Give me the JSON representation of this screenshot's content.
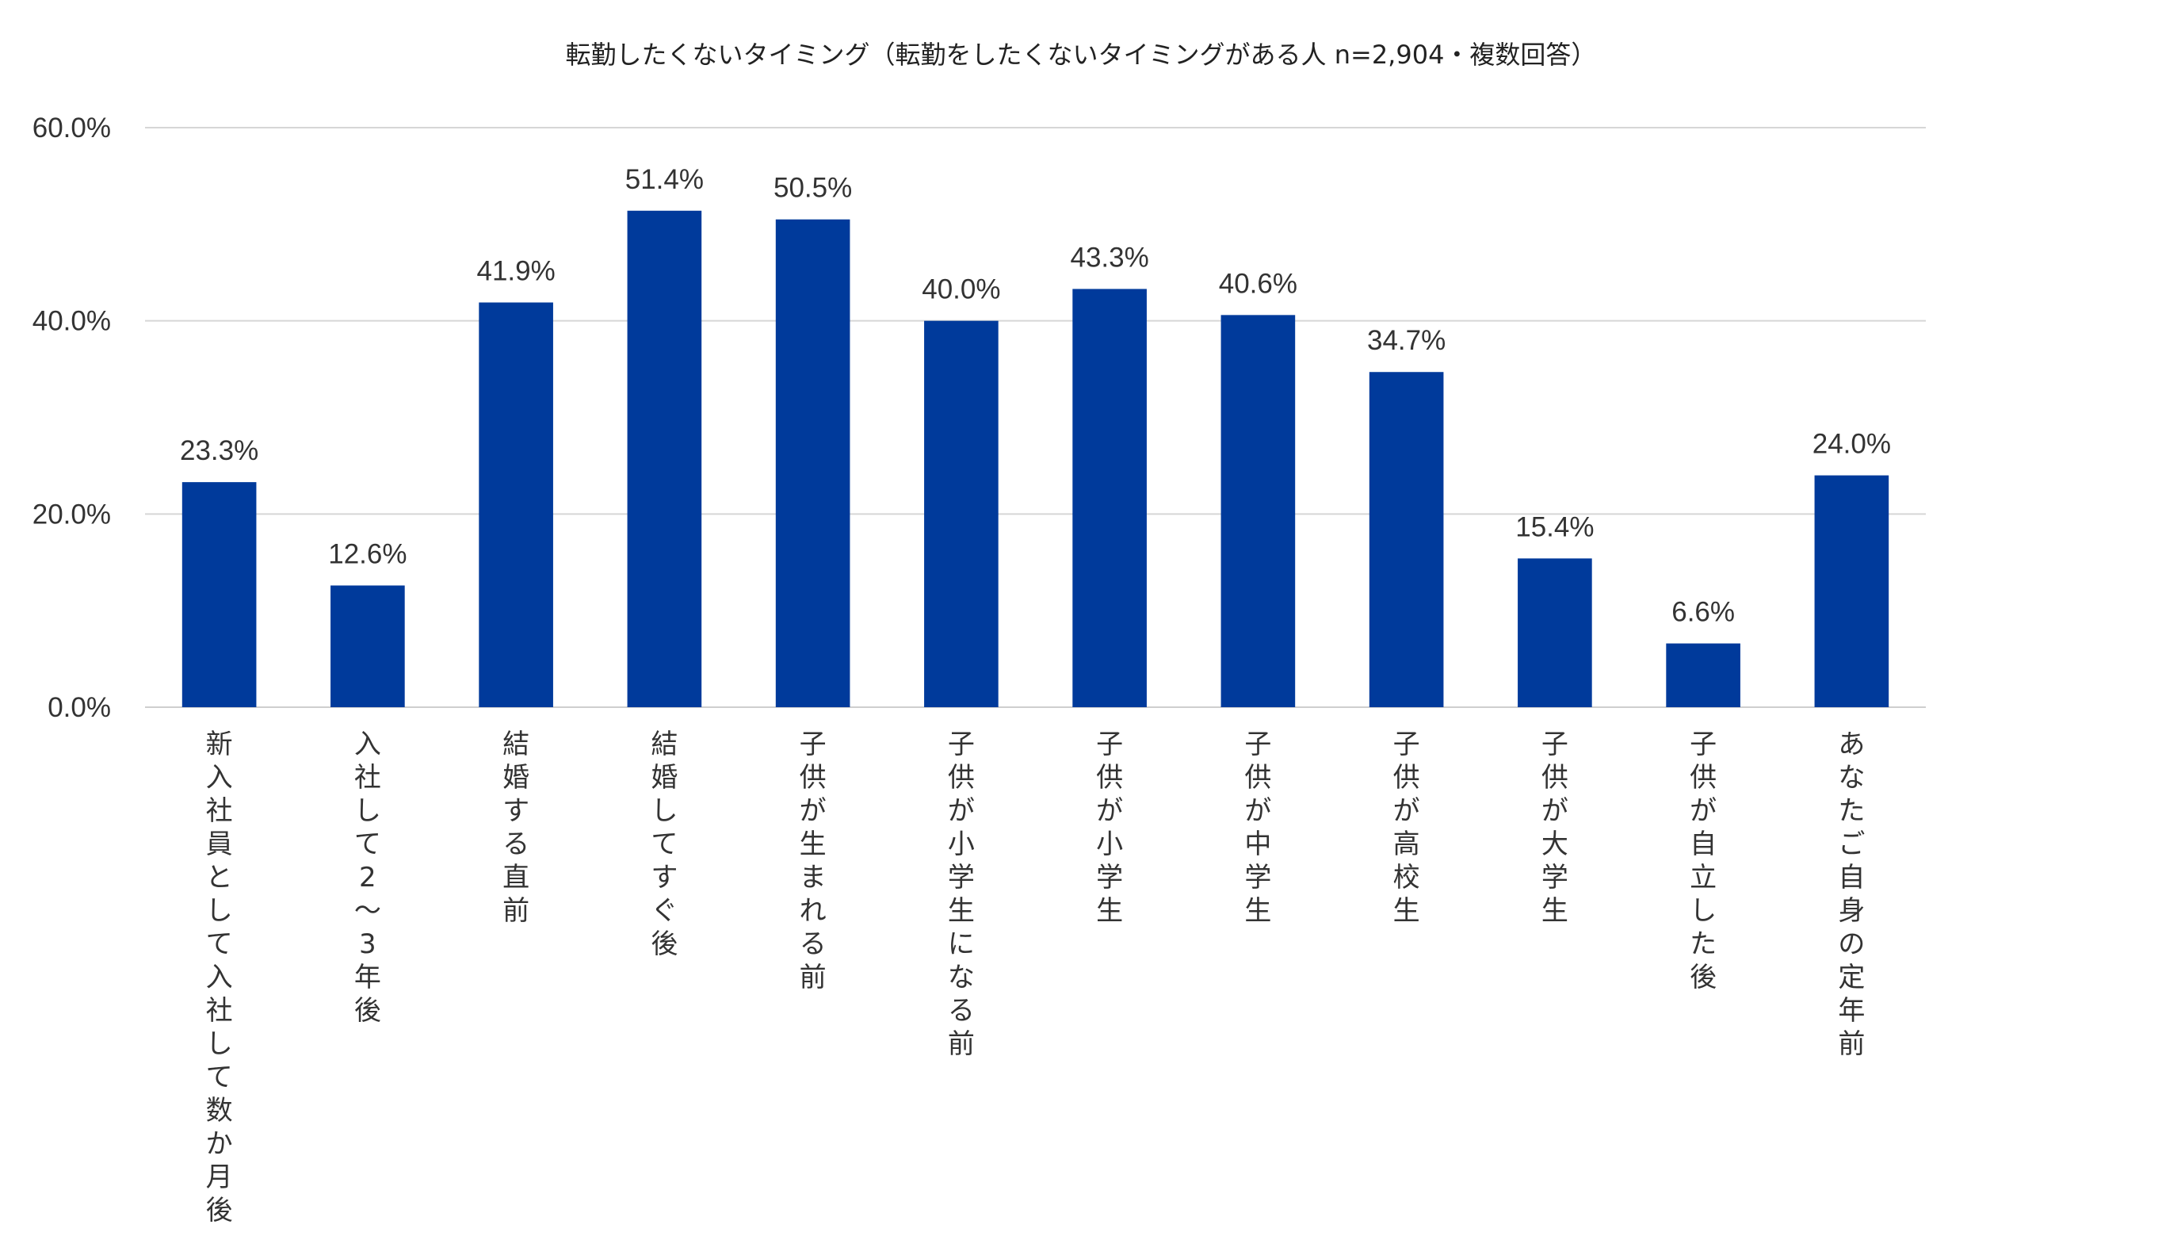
{
  "chart_data": {
    "type": "bar",
    "title": "転勤したくないタイミング（転勤をしたくないタイミングがある人 n=2,904・複数回答）",
    "categories": [
      "新入社員として入社して数か月後",
      "入社して2～3年後",
      "結婚する直前",
      "結婚してすぐ後",
      "子供が生まれる前",
      "子供が小学生になる前",
      "子供が小学生",
      "子供が中学生",
      "子供が高校生",
      "子供が大学生",
      "子供が自立した後",
      "あなたご自身の定年前"
    ],
    "values": [
      23.3,
      12.6,
      41.9,
      51.4,
      50.5,
      40.0,
      43.3,
      40.6,
      34.7,
      15.4,
      6.6,
      24.0
    ],
    "data_labels": [
      "23.3%",
      "12.6%",
      "41.9%",
      "51.4%",
      "50.5%",
      "40.0%",
      "43.3%",
      "40.6%",
      "34.7%",
      "15.4%",
      "6.6%",
      "24.0%"
    ],
    "y_ticks": [
      0,
      20,
      40,
      60
    ],
    "y_tick_labels": [
      "0.0%",
      "20.0%",
      "40.0%",
      "60.0%"
    ],
    "ylim": [
      0,
      60
    ],
    "xlabel": "",
    "ylabel": "",
    "grid": true,
    "legend": "none",
    "bar_color": "#003A9B"
  }
}
